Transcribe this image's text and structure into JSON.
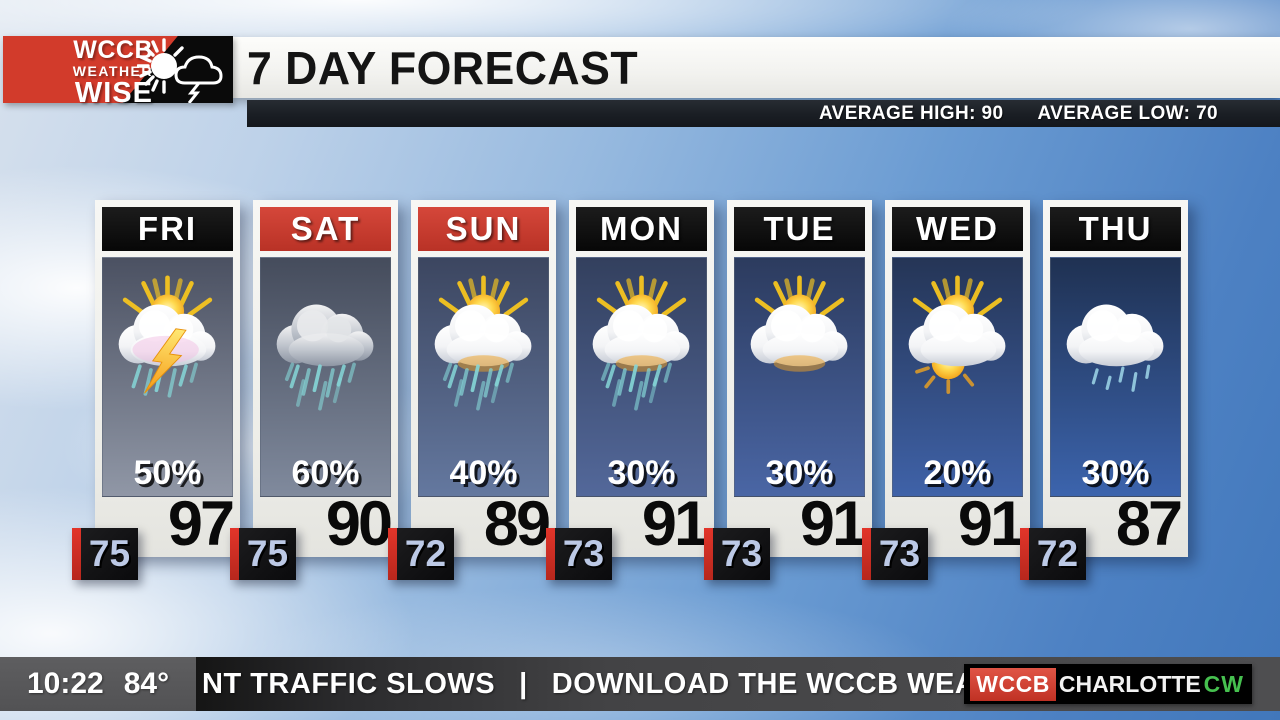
{
  "header": {
    "logo": {
      "line1": "WCCB",
      "line2": "WEATHER",
      "line3": "WISE"
    },
    "title": "7 DAY FORECAST",
    "avg_high": {
      "label": "AVERAGE HIGH:",
      "value": "90"
    },
    "avg_low": {
      "label": "AVERAGE LOW:",
      "value": "70"
    }
  },
  "forecast": {
    "cards": [
      {
        "day": "FRI",
        "header_color": "black",
        "icon": "scattered-thunderstorms",
        "precip_chance": "50%",
        "high": "97",
        "low": "75",
        "panel_top": "#4b5162",
        "panel_bottom": "#9097a6"
      },
      {
        "day": "SAT",
        "header_color": "red",
        "icon": "heavy-rain",
        "precip_chance": "60%",
        "high": "90",
        "low": "75",
        "panel_top": "#454c5c",
        "panel_bottom": "#808a9d"
      },
      {
        "day": "SUN",
        "header_color": "red",
        "icon": "sun-showers",
        "precip_chance": "40%",
        "high": "89",
        "low": "72",
        "panel_top": "#3c4660",
        "panel_bottom": "#64789f"
      },
      {
        "day": "MON",
        "header_color": "black",
        "icon": "sun-showers",
        "precip_chance": "30%",
        "high": "91",
        "low": "73",
        "panel_top": "#33405e",
        "panel_bottom": "#53689a"
      },
      {
        "day": "TUE",
        "header_color": "black",
        "icon": "mostly-cloudy-sun",
        "precip_chance": "30%",
        "high": "91",
        "low": "73",
        "panel_top": "#2c3b5e",
        "panel_bottom": "#4a66a5"
      },
      {
        "day": "WED",
        "header_color": "black",
        "icon": "partly-cloudy-sun",
        "precip_chance": "20%",
        "high": "91",
        "low": "73",
        "panel_top": "#253556",
        "panel_bottom": "#3f62a8"
      },
      {
        "day": "THU",
        "header_color": "black",
        "icon": "light-rain",
        "precip_chance": "30%",
        "high": "87",
        "low": "72",
        "panel_top": "#1f3152",
        "panel_bottom": "#3c64ad"
      }
    ]
  },
  "ticker": {
    "time": "10:22",
    "temperature": "84°",
    "headline": "NT TRAFFIC SLOWS",
    "separator": "|",
    "promo": "DOWNLOAD THE WCCB WEATHERWISE",
    "station": {
      "wccb": "WCCB",
      "charlotte": "CHARLOTTE",
      "cw": "CW"
    }
  },
  "colors": {
    "brand_red": "#d23b2b",
    "header_black": "#0d0d0d",
    "header_red": "#c9392c",
    "badge_stripe_red": "#d3261b",
    "badge_text_blue": "#bcc9e6",
    "cw_green": "#46c04f",
    "rain_teal": "#86d7d8"
  },
  "chart_data": {
    "type": "table",
    "title": "7 DAY FORECAST",
    "columns": [
      "day",
      "conditions",
      "precip_chance_pct",
      "high_f",
      "low_f"
    ],
    "rows": [
      [
        "FRI",
        "scattered thunderstorms",
        50,
        97,
        75
      ],
      [
        "SAT",
        "heavy rain",
        60,
        90,
        75
      ],
      [
        "SUN",
        "sun with showers",
        40,
        89,
        72
      ],
      [
        "MON",
        "sun with showers",
        30,
        91,
        73
      ],
      [
        "TUE",
        "mostly cloudy with sun",
        30,
        91,
        73
      ],
      [
        "WED",
        "partly cloudy",
        20,
        91,
        73
      ],
      [
        "THU",
        "light rain",
        30,
        87,
        72
      ]
    ],
    "annotations": {
      "average_high": 90,
      "average_low": 70
    }
  }
}
